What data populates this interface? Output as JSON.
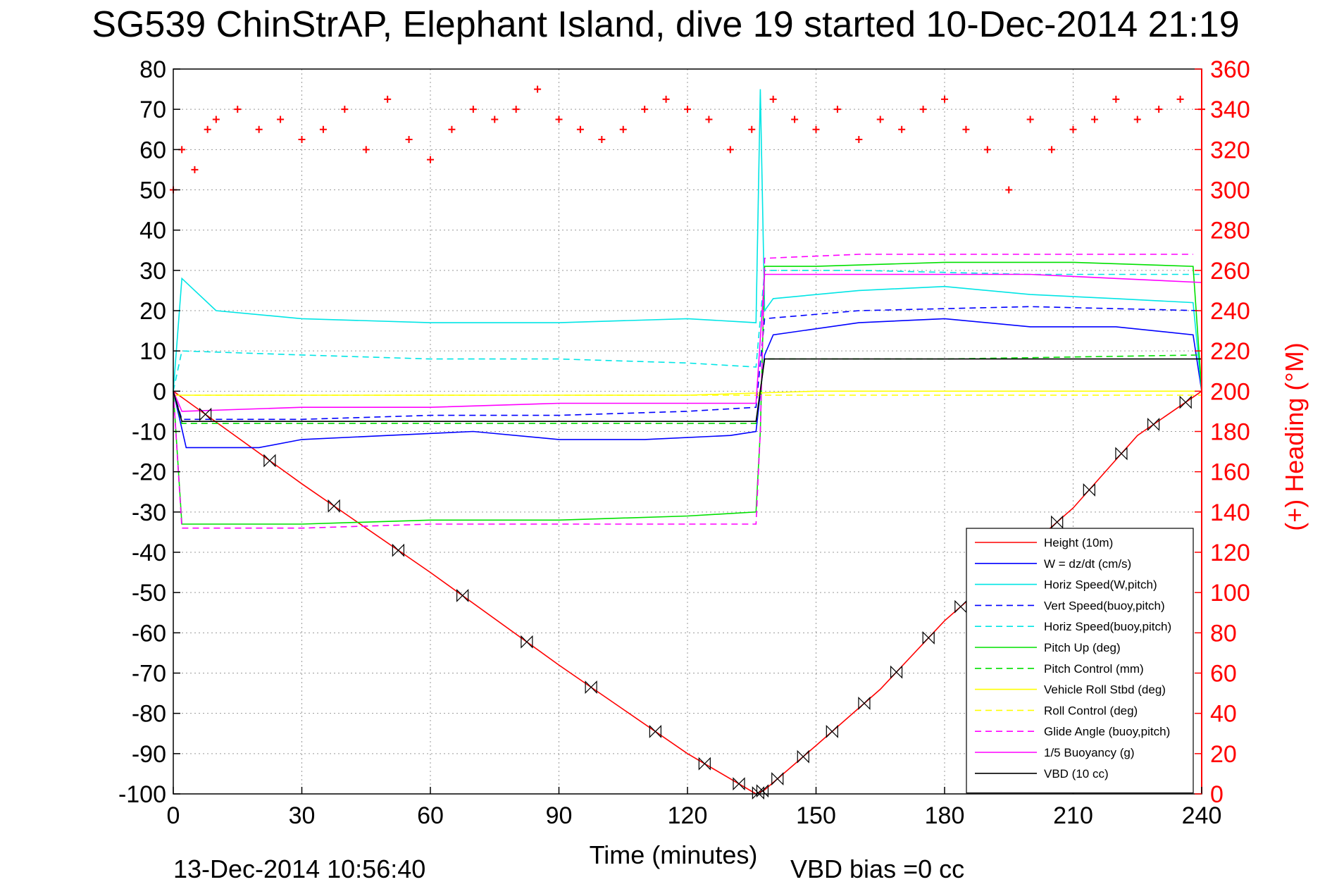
{
  "chart_data": {
    "type": "line",
    "title": "SG539 ChinStrAP, Elephant Island, dive 19 started 10-Dec-2014 21:19",
    "xlabel": "Time (minutes)",
    "ylabel_right": "(+) Heading (°M)",
    "xlim": [
      0,
      240
    ],
    "ylim": [
      -100,
      80
    ],
    "ylim_right": [
      0,
      360
    ],
    "x_ticks": [
      0,
      30,
      60,
      90,
      120,
      150,
      180,
      210,
      240
    ],
    "y_ticks": [
      80,
      70,
      60,
      50,
      40,
      30,
      20,
      10,
      0,
      -10,
      -20,
      -30,
      -40,
      -50,
      -60,
      -70,
      -80,
      -90,
      -100
    ],
    "y_ticks_right": [
      360,
      340,
      320,
      300,
      280,
      260,
      240,
      220,
      200,
      180,
      160,
      140,
      120,
      100,
      80,
      60,
      40,
      20,
      0
    ],
    "grid": true,
    "legend_position": "lower-right",
    "footer_left": "13-Dec-2014 10:56:40",
    "footer_right": "VBD bias =0 cc",
    "colors": {
      "red": "#ff0000",
      "blue": "#0000ff",
      "cyan": "#00e5e5",
      "green": "#00e000",
      "yellow": "#ffff00",
      "magenta": "#ff00ff",
      "black": "#000000"
    },
    "series": [
      {
        "name": "Height (10m)",
        "color": "#ff0000",
        "dash": "solid",
        "x": [
          0,
          30,
          60,
          90,
          120,
          136,
          138,
          150,
          165,
          180,
          195,
          210,
          225,
          240
        ],
        "y": [
          0,
          -23,
          -45,
          -68,
          -90,
          -100,
          -99,
          -88,
          -74,
          -57,
          -43,
          -29,
          -11,
          0
        ]
      },
      {
        "name": "W = dz/dt (cm/s)",
        "color": "#0000ff",
        "dash": "solid",
        "x": [
          0,
          3,
          10,
          20,
          30,
          50,
          70,
          90,
          110,
          130,
          136,
          138,
          140,
          160,
          180,
          200,
          220,
          238,
          240
        ],
        "y": [
          0,
          -14,
          -14,
          -14,
          -12,
          -11,
          -10,
          -12,
          -12,
          -11,
          -10,
          9,
          14,
          17,
          18,
          16,
          16,
          14,
          0
        ]
      },
      {
        "name": "Horiz Speed(W,pitch)",
        "color": "#00e5e5",
        "dash": "solid",
        "x": [
          0,
          2,
          10,
          30,
          60,
          90,
          120,
          136,
          137,
          138,
          140,
          160,
          180,
          200,
          220,
          238,
          240
        ],
        "y": [
          0,
          28,
          20,
          18,
          17,
          17,
          18,
          17,
          75,
          20,
          23,
          25,
          26,
          24,
          23,
          22,
          0
        ]
      },
      {
        "name": "Vert Speed(buoy,pitch)",
        "color": "#0000ff",
        "dash": "dashed",
        "x": [
          0,
          2,
          30,
          60,
          90,
          120,
          136,
          138,
          160,
          200,
          240
        ],
        "y": [
          0,
          -7,
          -7,
          -6,
          -6,
          -5,
          -4,
          18,
          20,
          21,
          20
        ]
      },
      {
        "name": "Horiz Speed(buoy,pitch)",
        "color": "#00e5e5",
        "dash": "dashed",
        "x": [
          0,
          2,
          30,
          60,
          90,
          120,
          136,
          138,
          160,
          200,
          240
        ],
        "y": [
          0,
          10,
          9,
          8,
          8,
          7,
          6,
          30,
          30,
          29,
          29
        ]
      },
      {
        "name": "Pitch Up (deg)",
        "color": "#00e000",
        "dash": "solid",
        "x": [
          0,
          2,
          10,
          30,
          60,
          90,
          120,
          136,
          137,
          138,
          150,
          180,
          210,
          238,
          240
        ],
        "y": [
          0,
          -33,
          -33,
          -33,
          -32,
          -32,
          -31,
          -30,
          -10,
          31,
          31,
          32,
          32,
          31,
          0
        ]
      },
      {
        "name": "Pitch Control (mm)",
        "color": "#00e000",
        "dash": "dashed",
        "x": [
          0,
          2,
          60,
          120,
          136,
          138,
          180,
          240
        ],
        "y": [
          0,
          -8,
          -8,
          -8,
          -8,
          8,
          8,
          9
        ]
      },
      {
        "name": "Vehicle Roll Stbd (deg)",
        "color": "#ffff00",
        "dash": "solid",
        "x": [
          0,
          30,
          60,
          90,
          120,
          150,
          180,
          210,
          240
        ],
        "y": [
          -1,
          -1,
          -1,
          -1,
          -1,
          0,
          0,
          0,
          0
        ]
      },
      {
        "name": "Roll Control (deg)",
        "color": "#ffff00",
        "dash": "dashed",
        "x": [
          0,
          60,
          120,
          180,
          240
        ],
        "y": [
          -1,
          -1,
          -1,
          -1,
          -1
        ]
      },
      {
        "name": "Glide Angle (buoy,pitch)",
        "color": "#ff00ff",
        "dash": "dashed",
        "x": [
          0,
          2,
          30,
          60,
          90,
          120,
          136,
          137,
          138,
          160,
          180,
          210,
          238
        ],
        "y": [
          0,
          -34,
          -34,
          -33,
          -33,
          -33,
          -33,
          -10,
          33,
          34,
          34,
          34,
          34
        ]
      },
      {
        "name": "1/5 Buoyancy (g)",
        "color": "#ff00ff",
        "dash": "solid",
        "x": [
          0,
          2,
          30,
          60,
          90,
          120,
          136,
          138,
          160,
          180,
          200,
          220,
          240
        ],
        "y": [
          0,
          -5,
          -4,
          -4,
          -3,
          -3,
          -3,
          29,
          29,
          29,
          29,
          28,
          27
        ]
      },
      {
        "name": "VBD (10 cc)",
        "color": "#000000",
        "dash": "solid",
        "x": [
          0,
          2,
          30,
          60,
          90,
          120,
          136,
          138,
          160,
          200,
          240
        ],
        "y": [
          0,
          -7.5,
          -7.5,
          -7.5,
          -7.5,
          -7.5,
          -7.5,
          8,
          8,
          8,
          8
        ]
      },
      {
        "name": "Heading",
        "color": "#ff0000",
        "dash": "markers",
        "axis": "right",
        "x": [
          0,
          2,
          5,
          8,
          10,
          15,
          20,
          25,
          30,
          35,
          40,
          45,
          50,
          55,
          60,
          65,
          70,
          75,
          80,
          85,
          90,
          95,
          100,
          105,
          110,
          115,
          120,
          125,
          130,
          135,
          140,
          145,
          150,
          155,
          160,
          165,
          170,
          175,
          180,
          185,
          190,
          195,
          200,
          205,
          210,
          215,
          220,
          225,
          230,
          235,
          240
        ],
        "y": [
          300,
          320,
          310,
          330,
          335,
          340,
          330,
          335,
          325,
          330,
          340,
          320,
          345,
          325,
          315,
          330,
          340,
          335,
          340,
          350,
          335,
          330,
          325,
          330,
          340,
          345,
          340,
          335,
          320,
          330,
          345,
          335,
          330,
          340,
          325,
          335,
          330,
          340,
          345,
          330,
          320,
          300,
          335,
          320,
          330,
          335,
          345,
          335,
          340,
          345,
          340
        ]
      }
    ]
  }
}
